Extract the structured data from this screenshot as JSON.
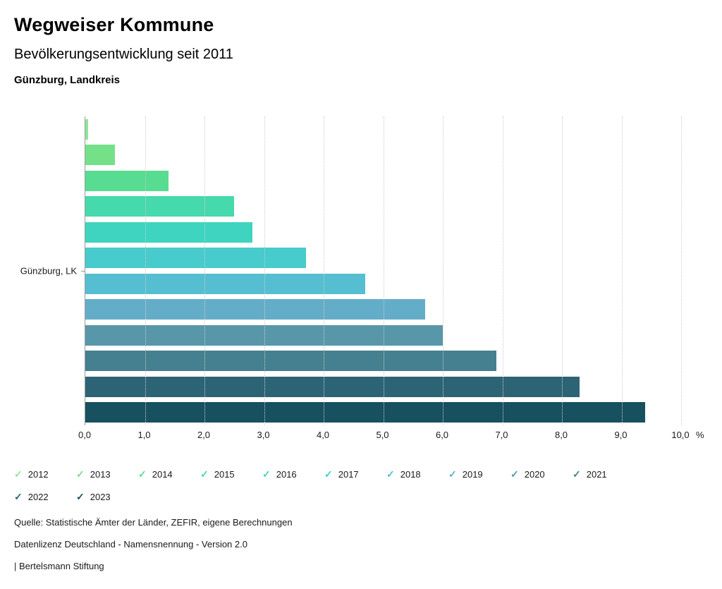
{
  "header": {
    "title": "Wegweiser Kommune",
    "subtitle": "Bevölkerungsentwicklung seit 2011",
    "region": "Günzburg, Landkreis"
  },
  "chart_data": {
    "type": "bar",
    "orientation": "horizontal",
    "title": "Bevölkerungsentwicklung seit 2011",
    "group_label": "Günzburg, LK",
    "xlabel": "%",
    "xlim": [
      0,
      10
    ],
    "xticks": [
      "0,0",
      "1,0",
      "2,0",
      "3,0",
      "4,0",
      "5,0",
      "6,0",
      "7,0",
      "8,0",
      "9,0",
      "10,0"
    ],
    "grid": true,
    "legend_position": "bottom",
    "series": [
      {
        "name": "2012",
        "value": 0.05,
        "color": "#8ee698"
      },
      {
        "name": "2013",
        "value": 0.5,
        "color": "#74e189"
      },
      {
        "name": "2014",
        "value": 1.4,
        "color": "#58dc92"
      },
      {
        "name": "2015",
        "value": 2.5,
        "color": "#46d9ab"
      },
      {
        "name": "2016",
        "value": 2.8,
        "color": "#3ed4c0"
      },
      {
        "name": "2017",
        "value": 3.7,
        "color": "#47cbcd"
      },
      {
        "name": "2018",
        "value": 4.7,
        "color": "#56bed1"
      },
      {
        "name": "2019",
        "value": 5.7,
        "color": "#64adc9"
      },
      {
        "name": "2020",
        "value": 6.0,
        "color": "#5897aa"
      },
      {
        "name": "2021",
        "value": 6.9,
        "color": "#44808f"
      },
      {
        "name": "2022",
        "value": 8.3,
        "color": "#2d6475"
      },
      {
        "name": "2023",
        "value": 9.4,
        "color": "#17505f"
      }
    ]
  },
  "legend": {
    "check_glyph": "✓"
  },
  "footer": {
    "source": "Quelle: Statistische Ämter der Länder, ZEFIR, eigene Berechnungen",
    "license": "Datenlizenz Deutschland - Namensnennung - Version 2.0",
    "brand": "| Bertelsmann Stiftung"
  }
}
